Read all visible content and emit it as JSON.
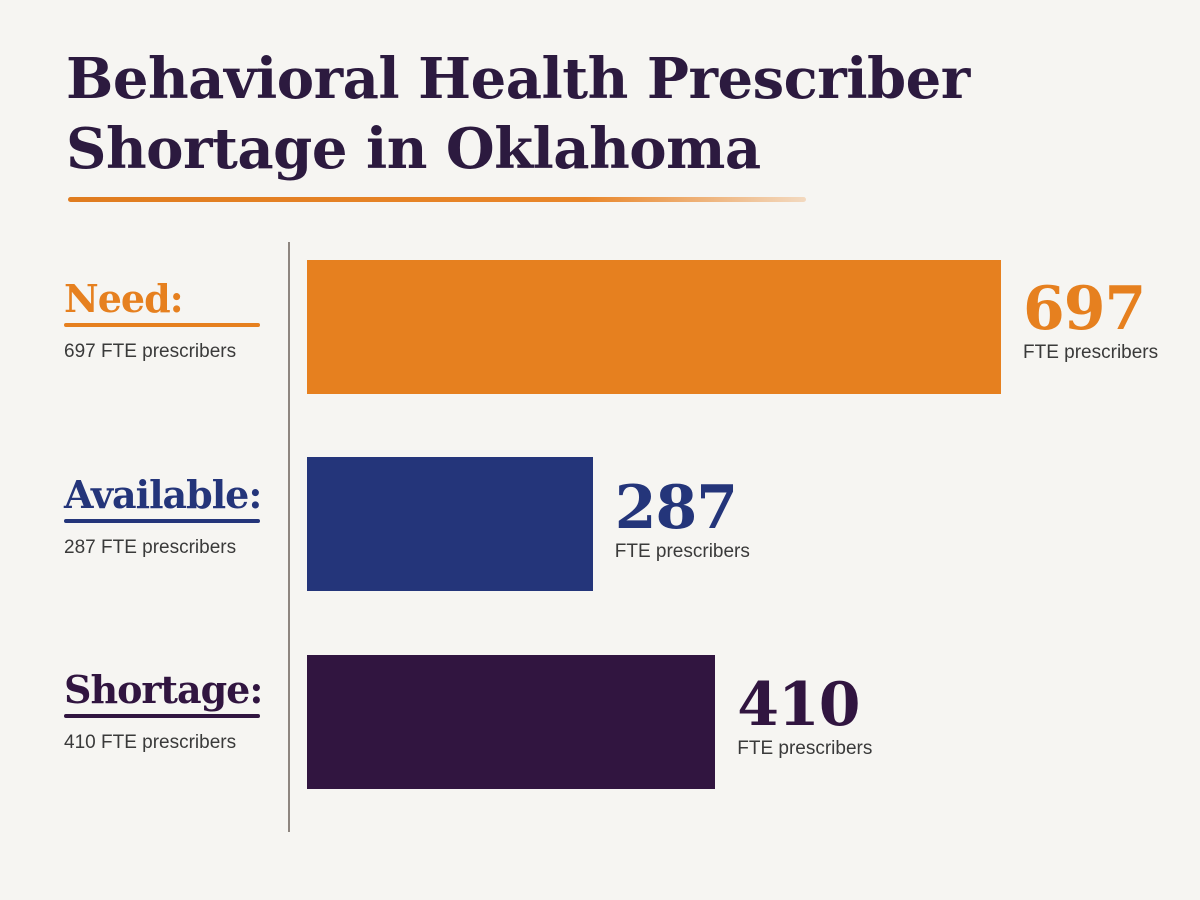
{
  "chart_data": {
    "type": "bar",
    "title": "Behavioral Health Prescriber Shortage in Oklahoma",
    "title_lines": [
      "Behavioral Health Prescriber",
      "Shortage in Oklahoma"
    ],
    "orientation": "horizontal",
    "unit": "FTE prescribers",
    "categories": [
      "Need:",
      "Available:",
      "Shortage:"
    ],
    "values": [
      697,
      287,
      410
    ],
    "sublabels": [
      "697 FTE prescribers",
      "287 FTE prescribers",
      "410 FTE prescribers"
    ],
    "value_labels": [
      "697",
      "287",
      "410"
    ],
    "colors": {
      "need": "#e6801f",
      "available": "#24357a",
      "shortage": "#311540",
      "title": "#2c1a3f"
    },
    "xlim": [
      0,
      697
    ],
    "grid": false,
    "legend": "none"
  }
}
